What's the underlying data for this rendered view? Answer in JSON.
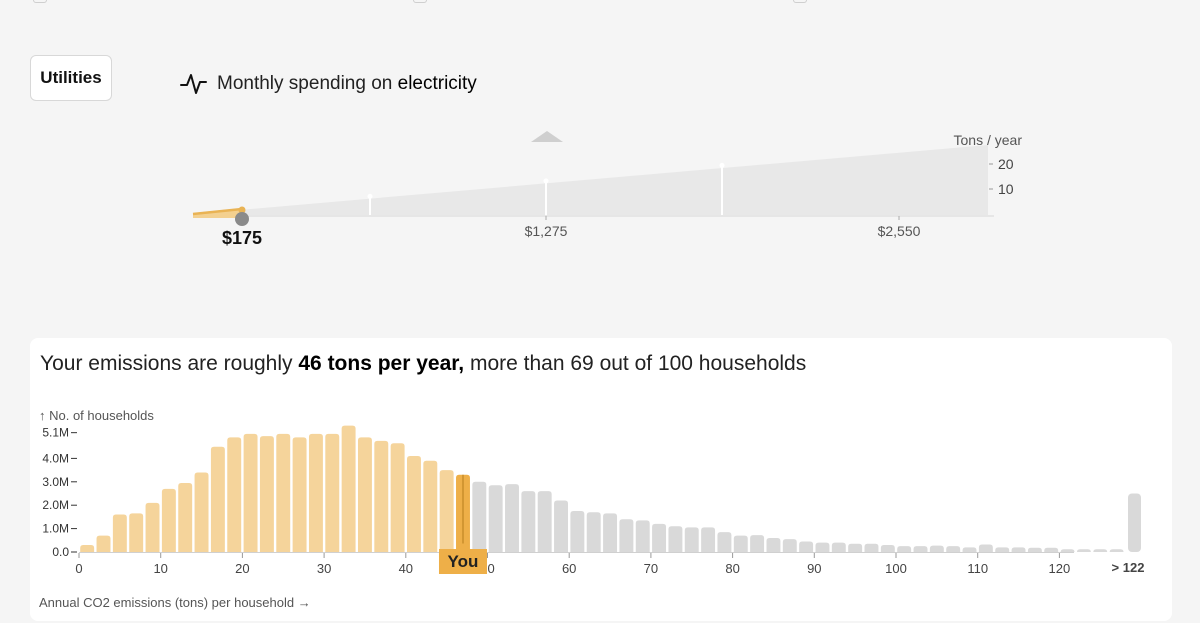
{
  "category_button": "Utilities",
  "spending": {
    "prefix": "Monthly spending on",
    "item": "electricity",
    "selected_label": "$175",
    "tick_labels": [
      "$1,275",
      "$2,550"
    ],
    "unit_label": "Tons / year",
    "y_ticks": [
      "20",
      "10"
    ]
  },
  "headline": {
    "prefix": "Your emissions are roughly",
    "value": "46 tons per year,",
    "suffix": "more than 69 out of 100 households"
  },
  "colors": {
    "below": "#f5d49b",
    "you": "#eeaf48",
    "above": "#d9d9d9",
    "slider_fill": "#e8e8e8",
    "slider_line": "#e9b354",
    "knob": "#8a8a8a"
  },
  "chart_data": {
    "type": "bar",
    "ylabel": "↑ No. of households",
    "xlabel": "Annual CO2 emissions (tons) per household →",
    "y_tick_labels": [
      "0.0",
      "1.0M",
      "2.0M",
      "3.0M",
      "4.0M",
      "5.1M"
    ],
    "y_tick_values": [
      0,
      1.0,
      2.0,
      3.0,
      4.0,
      5.1
    ],
    "x_tick_values": [
      0,
      10,
      20,
      30,
      40,
      50,
      60,
      70,
      80,
      90,
      100,
      110,
      120
    ],
    "bin_width_tons": 2,
    "you_bin_index": 23,
    "you_label": "You",
    "overflow_label": "> 122",
    "overflow_value": 2.5,
    "values_millions": [
      0.3,
      0.7,
      1.6,
      1.65,
      2.1,
      2.7,
      2.95,
      3.4,
      4.5,
      4.9,
      5.05,
      4.95,
      5.05,
      4.9,
      5.05,
      5.05,
      5.4,
      4.9,
      4.75,
      4.65,
      4.1,
      3.9,
      3.5,
      3.3,
      3.0,
      2.85,
      2.9,
      2.6,
      2.6,
      2.2,
      1.75,
      1.7,
      1.65,
      1.4,
      1.35,
      1.2,
      1.1,
      1.05,
      1.05,
      0.85,
      0.7,
      0.72,
      0.6,
      0.55,
      0.45,
      0.4,
      0.4,
      0.35,
      0.35,
      0.3,
      0.25,
      0.25,
      0.27,
      0.25,
      0.2,
      0.32,
      0.2,
      0.2,
      0.18,
      0.18,
      0.12,
      0.12,
      0.12,
      0.12
    ]
  }
}
